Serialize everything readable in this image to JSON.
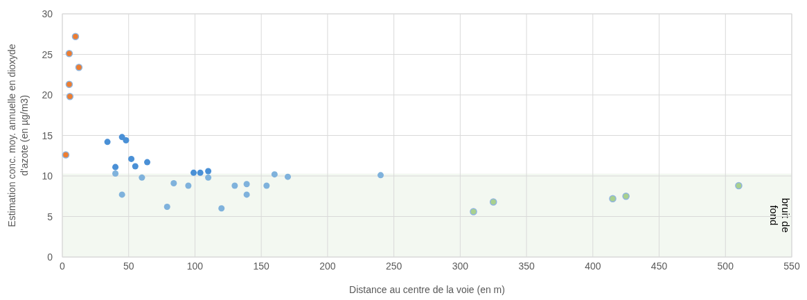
{
  "chart_data": {
    "type": "scatter",
    "xlabel": "Distance au centre de la voie (en m)",
    "ylabel": "Estimation conc. moy. annuelle en dioxyde d'azote (en µg/m3)",
    "xlim": [
      0,
      550
    ],
    "xticks": [
      0,
      50,
      100,
      150,
      200,
      250,
      300,
      350,
      400,
      450,
      500,
      550
    ],
    "ylim": [
      0,
      30
    ],
    "yticks": [
      0,
      5,
      10,
      15,
      20,
      25,
      30
    ],
    "grid": true,
    "marker": "circle",
    "bands": [
      {
        "axis": "y",
        "from": 0,
        "to": 10.3,
        "label": "bruit de fond",
        "color": "#f3f8f1"
      }
    ],
    "series": [
      {
        "color": "#ed7d31",
        "x": [
          2.6,
          5.2,
          9.9,
          12.5,
          5.2,
          5.7
        ],
        "values": [
          12.6,
          25.1,
          27.2,
          23.4,
          21.3,
          19.8
        ]
      },
      {
        "color": "#4a90d6",
        "x": [
          34,
          45,
          48,
          40,
          52,
          55,
          64,
          99,
          104,
          110
        ],
        "values": [
          14.2,
          14.8,
          14.4,
          11.1,
          12.1,
          11.2,
          11.7,
          10.4,
          10.4,
          10.6
        ]
      },
      {
        "color": "#7fb2dc",
        "x": [
          40,
          45,
          60,
          79,
          84,
          95,
          110,
          120,
          130,
          139,
          139,
          154,
          160,
          170,
          240
        ],
        "values": [
          10.3,
          7.7,
          9.8,
          6.2,
          9.1,
          8.8,
          9.8,
          6.0,
          8.8,
          9.0,
          7.7,
          8.8,
          10.2,
          9.9,
          10.1
        ]
      },
      {
        "color": "#a9d18e",
        "x": [
          310,
          325,
          415,
          425,
          510
        ],
        "values": [
          5.6,
          6.8,
          7.2,
          7.5,
          8.8
        ]
      }
    ]
  }
}
